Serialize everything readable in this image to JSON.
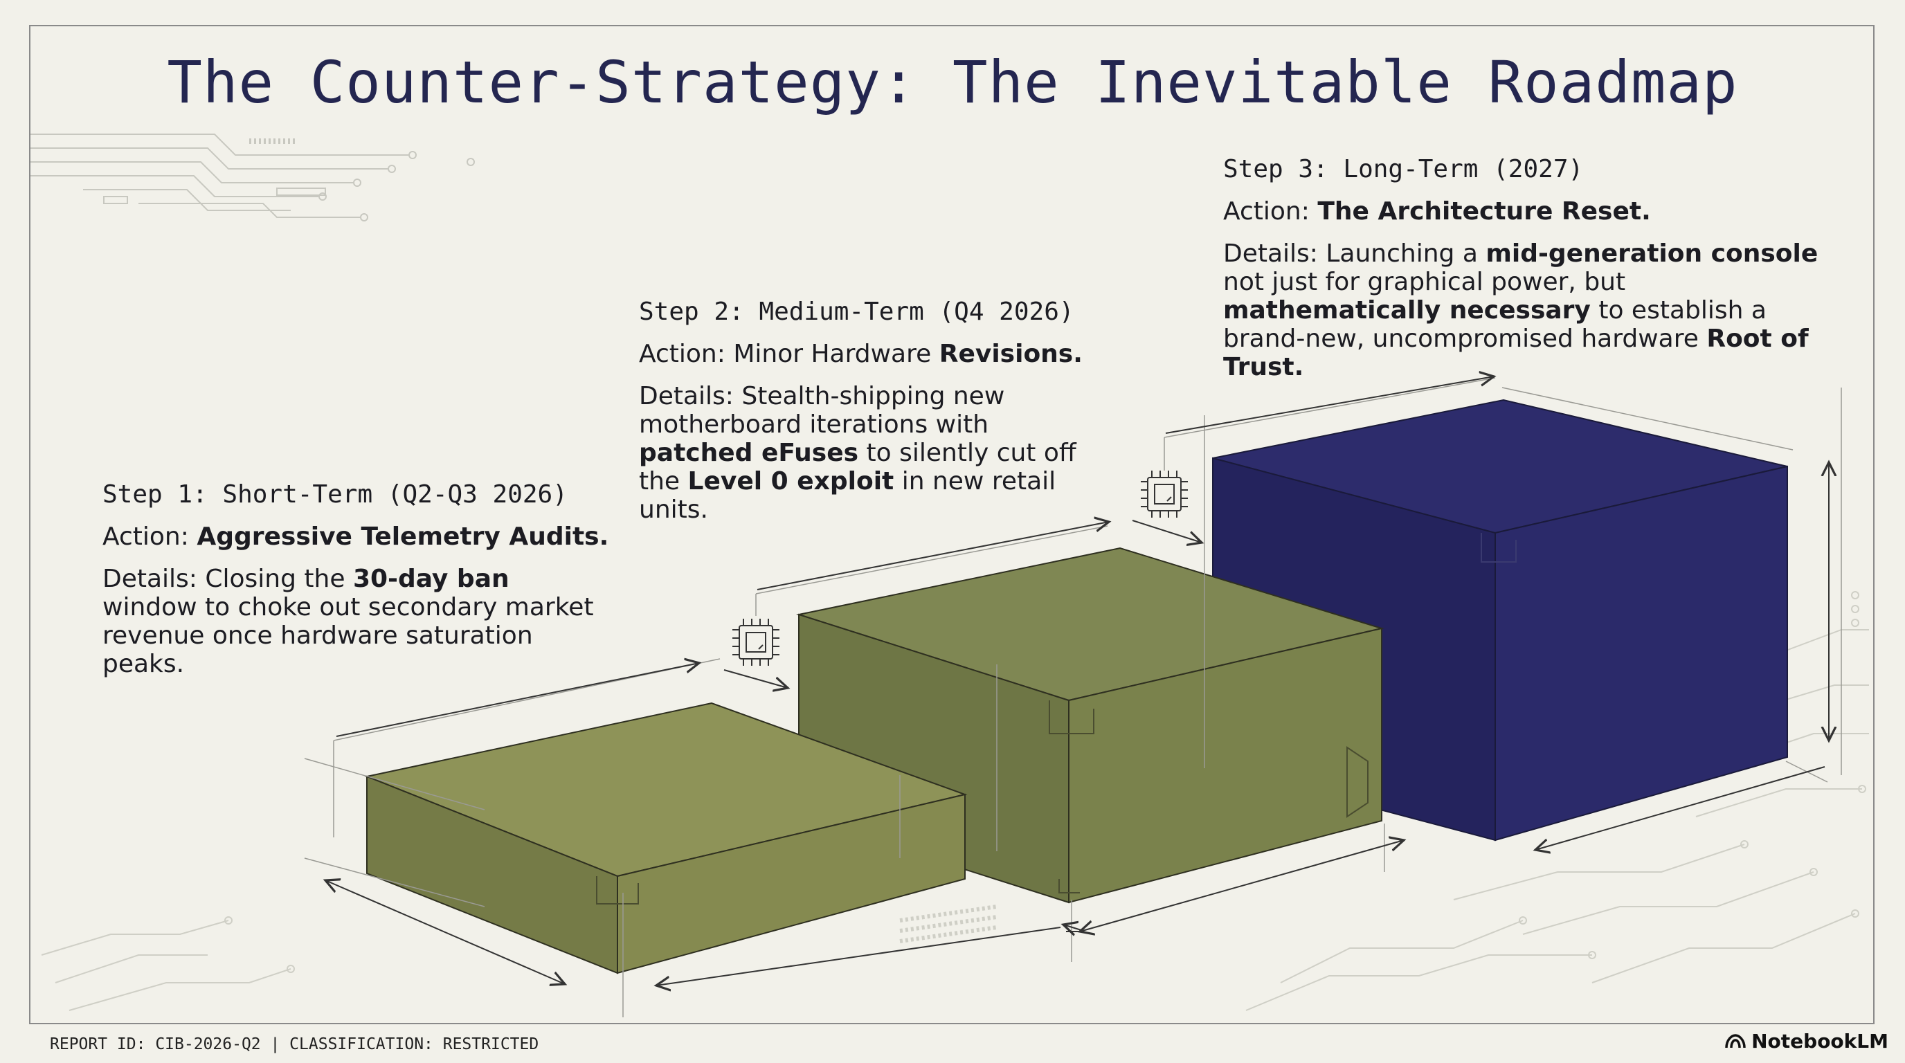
{
  "title": "The Counter-Strategy: The Inevitable Roadmap",
  "steps": [
    {
      "heading": "Step 1: Short-Term (Q2-Q3 2026)",
      "action_prefix": "Action: ",
      "action_bold": "Aggressive Telemetry Audits.",
      "details": [
        {
          "text": "Details: Closing the ",
          "bold": false
        },
        {
          "text": "30-day ban",
          "bold": true
        },
        {
          "text": " window to choke out secondary market revenue once hardware saturation peaks.",
          "bold": false
        }
      ],
      "block_color": "#8f9458"
    },
    {
      "heading": "Step 2: Medium-Term (Q4 2026)",
      "action_prefix": "Action: Minor Hardware ",
      "action_bold": "Revisions.",
      "details": [
        {
          "text": "Details: Stealth-shipping new motherboard iterations with ",
          "bold": false
        },
        {
          "text": "patched eFuses",
          "bold": true
        },
        {
          "text": " to silently cut off the ",
          "bold": false
        },
        {
          "text": "Level 0 exploit",
          "bold": true
        },
        {
          "text": " in new retail units.",
          "bold": false
        }
      ],
      "block_color": "#7e8552"
    },
    {
      "heading": "Step 3: Long-Term (2027)",
      "action_prefix": "Action: ",
      "action_bold": "The Architecture Reset.",
      "details": [
        {
          "text": "Details: Launching a ",
          "bold": false
        },
        {
          "text": "mid-generation console",
          "bold": true
        },
        {
          "text": " not just for graphical power, but ",
          "bold": false
        },
        {
          "text": "mathematically necessary",
          "bold": true
        },
        {
          "text": " to establish a brand-new, uncompromised hardware ",
          "bold": false
        },
        {
          "text": "Root of Trust.",
          "bold": true
        }
      ],
      "block_color": "#2b2a68"
    }
  ],
  "footer": {
    "left": "REPORT ID: CIB-2026-Q2 | CLASSIFICATION: RESTRICTED",
    "right": "NotebookLM"
  },
  "icons": [
    "chip-icon",
    "chip-icon",
    "notebooklm-logo-icon"
  ]
}
